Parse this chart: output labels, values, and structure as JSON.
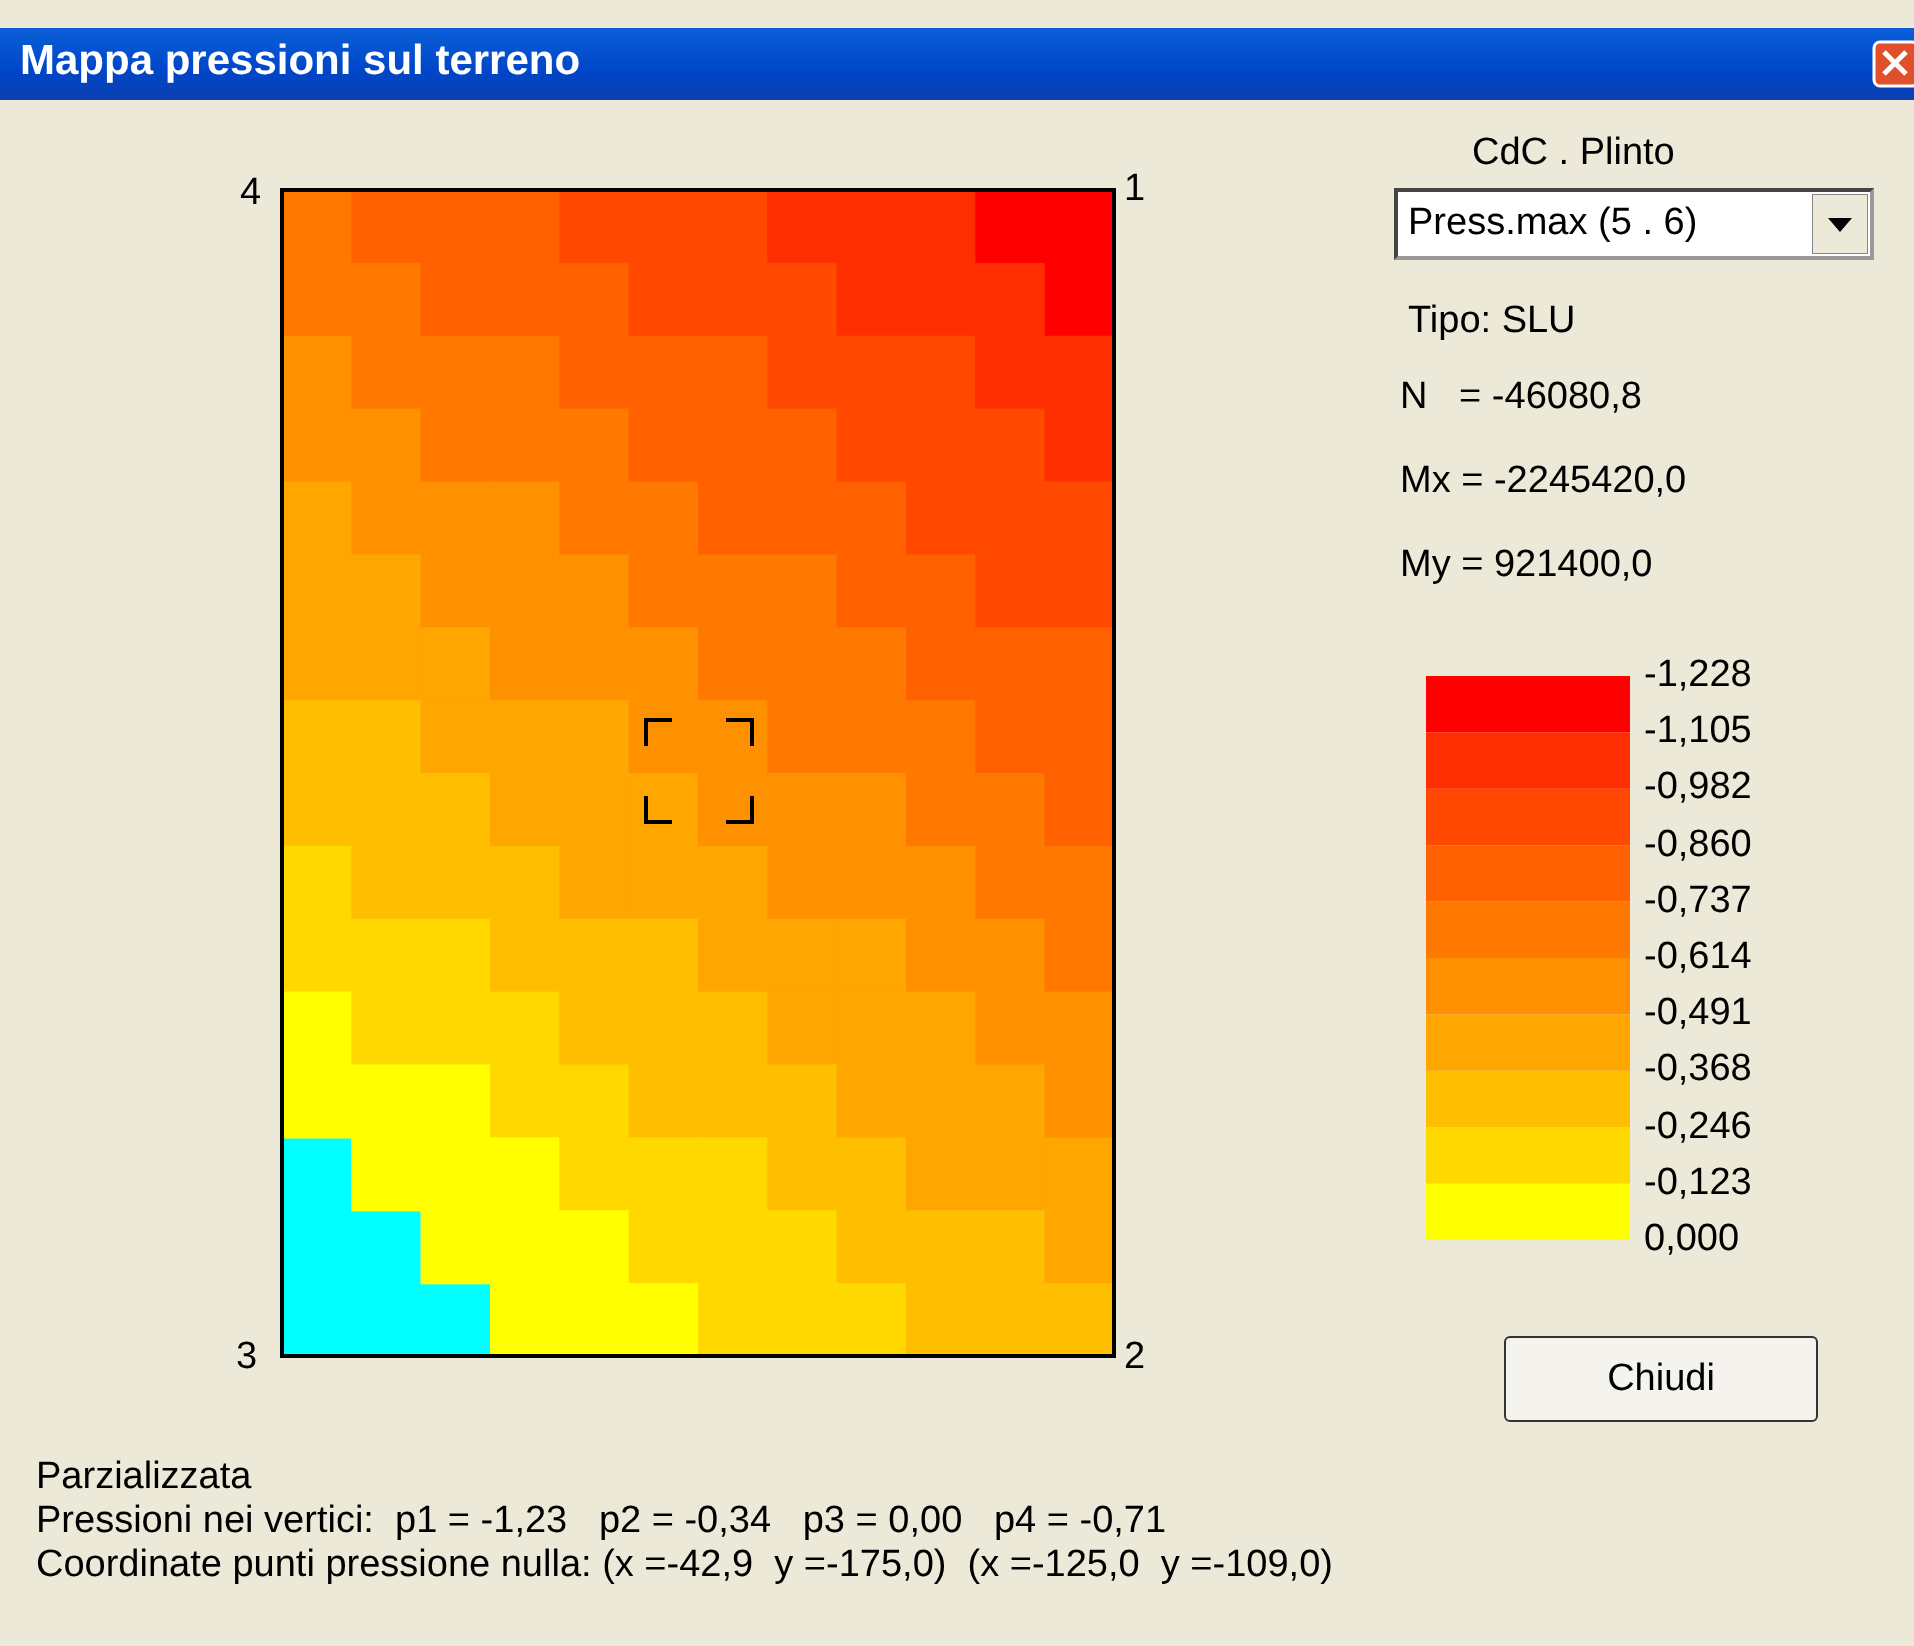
{
  "chart_data": {
    "type": "heatmap",
    "title": "Mappa pressioni sul terreno",
    "categories": [
      null,
      null,
      null,
      null,
      null,
      null,
      null,
      null,
      null,
      null,
      null,
      null
    ],
    "y_categories": [
      null,
      null,
      null,
      null,
      null,
      null,
      null,
      null,
      null,
      null,
      null,
      null,
      null,
      null,
      null,
      null
    ],
    "cells": [
      [
        -0.7,
        -0.75,
        -0.79,
        -0.83,
        -0.88,
        -0.92,
        -0.96,
        -1.01,
        -1.05,
        -1.09,
        -1.14,
        -1.18
      ],
      [
        -0.65,
        -0.69,
        -0.74,
        -0.78,
        -0.82,
        -0.87,
        -0.91,
        -0.95,
        -1.0,
        -1.04,
        -1.08,
        -1.13
      ],
      [
        -0.59,
        -0.64,
        -0.68,
        -0.72,
        -0.77,
        -0.81,
        -0.85,
        -0.9,
        -0.94,
        -0.98,
        -1.03,
        -1.07
      ],
      [
        -0.54,
        -0.58,
        -0.62,
        -0.67,
        -0.71,
        -0.75,
        -0.8,
        -0.84,
        -0.88,
        -0.93,
        -0.97,
        -1.01
      ],
      [
        -0.48,
        -0.53,
        -0.57,
        -0.61,
        -0.66,
        -0.7,
        -0.74,
        -0.79,
        -0.83,
        -0.87,
        -0.92,
        -0.96
      ],
      [
        -0.43,
        -0.47,
        -0.51,
        -0.56,
        -0.6,
        -0.64,
        -0.69,
        -0.73,
        -0.77,
        -0.82,
        -0.86,
        -0.9
      ],
      [
        -0.37,
        -0.41,
        -0.46,
        -0.5,
        -0.54,
        -0.59,
        -0.63,
        -0.67,
        -0.72,
        -0.76,
        -0.8,
        -0.85
      ],
      [
        -0.32,
        -0.36,
        -0.4,
        -0.44,
        -0.49,
        -0.53,
        -0.58,
        -0.62,
        -0.66,
        -0.71,
        -0.75,
        -0.79
      ],
      [
        -0.26,
        -0.3,
        -0.35,
        -0.39,
        -0.43,
        -0.48,
        -0.52,
        -0.56,
        -0.61,
        -0.65,
        -0.69,
        -0.74
      ],
      [
        -0.2,
        -0.25,
        -0.29,
        -0.33,
        -0.38,
        -0.42,
        -0.46,
        -0.51,
        -0.55,
        -0.59,
        -0.64,
        -0.68
      ],
      [
        -0.15,
        -0.19,
        -0.23,
        -0.28,
        -0.32,
        -0.36,
        -0.41,
        -0.45,
        -0.49,
        -0.54,
        -0.58,
        -0.62
      ],
      [
        -0.09,
        -0.14,
        -0.18,
        -0.22,
        -0.27,
        -0.31,
        -0.35,
        -0.4,
        -0.44,
        -0.48,
        -0.53,
        -0.57
      ],
      [
        -0.04,
        -0.08,
        -0.12,
        -0.17,
        -0.21,
        -0.25,
        -0.3,
        -0.34,
        -0.38,
        -0.43,
        -0.47,
        -0.51
      ],
      [
        null,
        -0.02,
        -0.07,
        -0.11,
        -0.15,
        -0.2,
        -0.24,
        -0.28,
        -0.33,
        -0.37,
        -0.41,
        -0.46
      ],
      [
        null,
        null,
        -0.01,
        -0.06,
        -0.1,
        -0.14,
        -0.19,
        -0.23,
        -0.27,
        -0.32,
        -0.36,
        -0.4
      ],
      [
        null,
        null,
        null,
        0,
        -0.04,
        -0.09,
        -0.13,
        -0.17,
        -0.22,
        -0.26,
        -0.3,
        -0.35
      ]
    ],
    "clim": [
      -1.228,
      0
    ],
    "cticks": [
      {
        "value": -1.228,
        "label": "-1,228"
      },
      {
        "value": -1.105,
        "label": "-1,105"
      },
      {
        "value": -0.982,
        "label": "-0,982"
      },
      {
        "value": -0.86,
        "label": "-0,860"
      },
      {
        "value": -0.737,
        "label": "-0,737"
      },
      {
        "value": -0.614,
        "label": "-0,614"
      },
      {
        "value": -0.491,
        "label": "-0,491"
      },
      {
        "value": -0.368,
        "label": "-0,368"
      },
      {
        "value": -0.246,
        "label": "-0,246"
      },
      {
        "value": -0.123,
        "label": "-0,123"
      },
      {
        "value": 0,
        "label": "0,000"
      }
    ],
    "colors": [
      "#ffff00",
      "#ffd800",
      "#ffbe00",
      "#ffa600",
      "#ff9000",
      "#ff7800",
      "#ff6000",
      "#ff4800",
      "#ff2e00",
      "#ff0000"
    ],
    "tick_labels": false,
    "annotations": [
      "CdC . Plinto",
      "Press.max (5 . 6)",
      "Tipo: SLU",
      "N   = -46080,8",
      "Mx = -2245420,0",
      "My = 921400,0",
      "Chiudi",
      "4",
      "1",
      "3",
      "2",
      "Parzializzata",
      "Pressioni nei vertici:  p1 = -1,23   p2 = -0,34   p3 = 0,00   p4 = -0,71",
      "Coordinate punti pressione nulla: (x =-42,9  y =-175,0)  (x =-125,0  y =-109,0)"
    ]
  }
}
